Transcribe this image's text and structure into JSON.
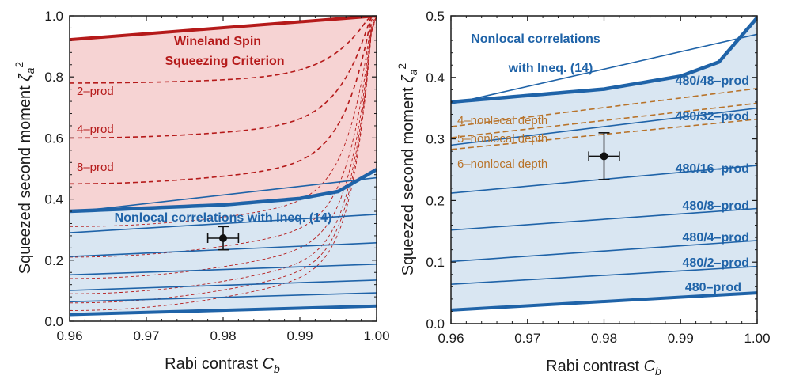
{
  "chart_data": [
    {
      "type": "line",
      "panel": "left",
      "xlabel": "Rabi contrast",
      "xlabel_sym": "C",
      "xlabel_sub": "b",
      "ylabel": "Squeezed second moment",
      "ylabel_sym": "ζ",
      "ylabel_sub": "a",
      "ylabel_sup": "2",
      "xlim": [
        0.96,
        1.0
      ],
      "ylim": [
        0.0,
        1.0
      ],
      "xticks": [
        "0.96",
        "0.97",
        "0.98",
        "0.99",
        "1.00"
      ],
      "yticks": [
        "0.0",
        "0.2",
        "0.4",
        "0.6",
        "0.8",
        "1.0"
      ],
      "colors": {
        "red": "#b51a1a",
        "redfill": "#f6d3d3",
        "blue": "#1f63a8",
        "bluefill": "#d9e6f2"
      },
      "wineland": {
        "name": "Wineland Spin Squeezing Criterion",
        "x": [
          0.96,
          1.0
        ],
        "y": [
          0.922,
          1.0
        ]
      },
      "red_dashed": [
        {
          "name": "2-prod",
          "y_at_096": 0.78
        },
        {
          "name": "4-prod",
          "y_at_096": 0.6
        },
        {
          "name": "8-prod",
          "y_at_096": 0.45
        },
        {
          "name": "",
          "y_at_096": 0.31
        },
        {
          "name": "",
          "y_at_096": 0.21
        },
        {
          "name": "",
          "y_at_096": 0.14
        },
        {
          "name": "",
          "y_at_096": 0.09
        },
        {
          "name": "",
          "y_at_096": 0.06
        },
        {
          "name": "",
          "y_at_096": 0.035
        }
      ],
      "nonlocal_bound": {
        "name": "Nonlocal correlations with Ineq. (14)",
        "x": [
          0.96,
          0.98,
          0.99,
          0.995,
          1.0
        ],
        "y": [
          0.36,
          0.381,
          0.402,
          0.425,
          0.497
        ]
      },
      "blue_lines": [
        {
          "name": "480/48-prod",
          "y": [
            0.357,
            0.47
          ]
        },
        {
          "name": "480/32-prod",
          "y": [
            0.29,
            0.35
          ]
        },
        {
          "name": "480/16-prod",
          "y": [
            0.212,
            0.257
          ]
        },
        {
          "name": "480/8-prod",
          "y": [
            0.152,
            0.187
          ]
        },
        {
          "name": "480/4-prod",
          "y": [
            0.101,
            0.135
          ]
        },
        {
          "name": "480/2-prod",
          "y": [
            0.064,
            0.093
          ]
        }
      ],
      "bottom_line": {
        "name": "480-prod",
        "y": [
          0.022,
          0.05
        ]
      },
      "labels": {
        "wineland_1": "Wineland Spin",
        "wineland_2": "Squeezing Criterion",
        "prod_2": "2–prod",
        "prod_4": "4–prod",
        "prod_8": "8–prod",
        "nonlocal": "Nonlocal correlations with Ineq. (14)"
      },
      "datapoint": {
        "x": 0.98,
        "y": 0.272,
        "xerr": 0.002,
        "yerr": 0.038
      }
    },
    {
      "type": "line",
      "panel": "right",
      "xlabel": "Rabi contrast",
      "xlabel_sym": "C",
      "xlabel_sub": "b",
      "ylabel": "Squeezed second moment",
      "ylabel_sym": "ζ",
      "ylabel_sub": "a",
      "ylabel_sup": "2",
      "xlim": [
        0.96,
        1.0
      ],
      "ylim": [
        0.0,
        0.5
      ],
      "xticks": [
        "0.96",
        "0.97",
        "0.98",
        "0.99",
        "1.00"
      ],
      "yticks": [
        "0.0",
        "0.1",
        "0.2",
        "0.3",
        "0.4",
        "0.5"
      ],
      "colors": {
        "blue": "#1f63a8",
        "bluefill": "#d9e6f2",
        "orange": "#b8732a"
      },
      "nonlocal_bound": {
        "name": "Nonlocal correlations with Ineq. (14)",
        "x": [
          0.96,
          0.98,
          0.99,
          0.995,
          1.0
        ],
        "y": [
          0.36,
          0.381,
          0.402,
          0.425,
          0.497
        ]
      },
      "blue_lines": [
        {
          "name": "480/48-prod",
          "y": [
            0.357,
            0.47
          ]
        },
        {
          "name": "480/32-prod",
          "y": [
            0.29,
            0.35
          ]
        },
        {
          "name": "480/16-prod",
          "y": [
            0.212,
            0.257
          ]
        },
        {
          "name": "480/8-prod",
          "y": [
            0.152,
            0.187
          ]
        },
        {
          "name": "480/4-prod",
          "y": [
            0.101,
            0.135
          ]
        },
        {
          "name": "480/2-prod",
          "y": [
            0.064,
            0.093
          ]
        }
      ],
      "bottom_line": {
        "name": "480-prod",
        "y": [
          0.022,
          0.05
        ]
      },
      "orange_dashed": [
        {
          "name": "4-nonlocal depth",
          "y": [
            0.32,
            0.382
          ]
        },
        {
          "name": "5-nonlocal depth",
          "y": [
            0.302,
            0.358
          ]
        },
        {
          "name": "6-nonlocal depth",
          "y": [
            0.283,
            0.332
          ]
        }
      ],
      "labels": {
        "nonlocal_1": "Nonlocal correlations",
        "nonlocal_2": "with Ineq. (14)",
        "p48": "480/48–prod",
        "p32": "480/32–prod",
        "p16": "480/16–prod",
        "p8": "480/8–prod",
        "p4": "480/4–prod",
        "p2": "480/2–prod",
        "p1": "480–prod",
        "d4": "4–nonlocal depth",
        "d5": "5–nonlocal depth",
        "d6": "6–nonlocal depth"
      },
      "datapoint": {
        "x": 0.98,
        "y": 0.272,
        "xerr": 0.002,
        "yerr": 0.038
      }
    }
  ]
}
